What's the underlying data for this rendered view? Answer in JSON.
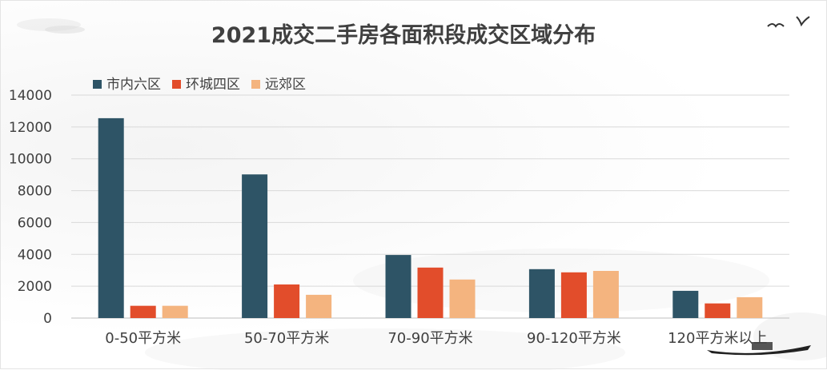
{
  "chart_data": {
    "type": "bar",
    "title": "2021成交二手房各面积段成交区域分布",
    "categories": [
      "0-50平方米",
      "50-70平方米",
      "70-90平方米",
      "90-120平方米",
      "120平方米以上"
    ],
    "series": [
      {
        "name": "市内六区",
        "values": [
          12550,
          9020,
          3960,
          3070,
          1710
        ],
        "color": "#2e5466"
      },
      {
        "name": "环城四区",
        "values": [
          770,
          2110,
          3170,
          2870,
          920
        ],
        "color": "#e24d2b"
      },
      {
        "name": "远郊区",
        "values": [
          770,
          1460,
          2420,
          2960,
          1310
        ],
        "color": "#f4b47f"
      }
    ],
    "ylim": [
      0,
      14000
    ],
    "yticks": [
      0,
      2000,
      4000,
      6000,
      8000,
      10000,
      12000,
      14000
    ],
    "grid": true,
    "legend_position": "top-left"
  }
}
